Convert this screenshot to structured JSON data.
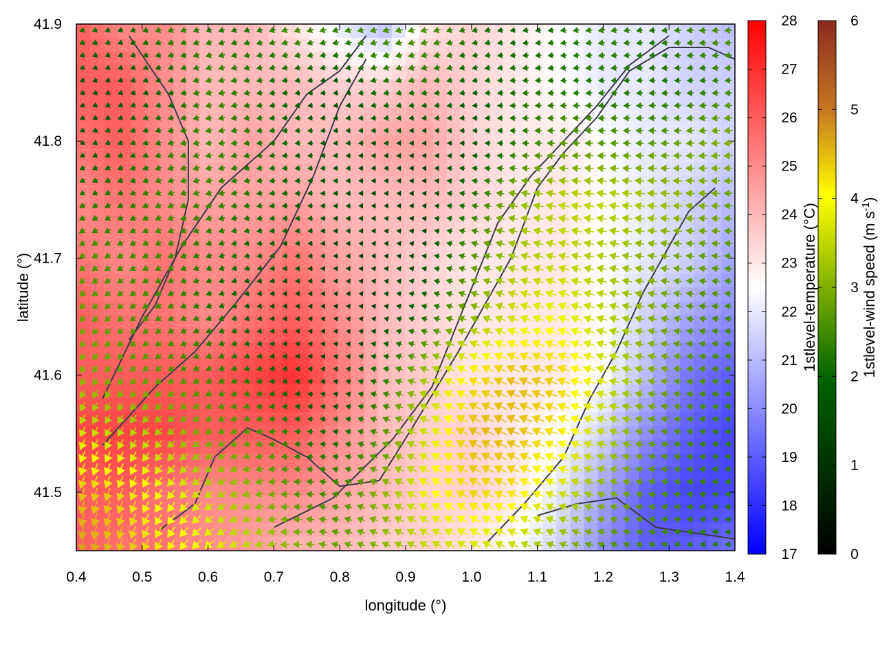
{
  "chart_data": {
    "type": "heatmap",
    "title": "",
    "xlabel": "longitude (°)",
    "ylabel": "latitude (°)",
    "xlim": [
      0.4,
      1.4
    ],
    "ylim": [
      41.45,
      41.9
    ],
    "x_ticks": [
      "0.4",
      "0.5",
      "0.6",
      "0.7",
      "0.8",
      "0.9",
      "1.0",
      "1.1",
      "1.2",
      "1.3",
      "1.4"
    ],
    "y_ticks": [
      "41.5",
      "41.6",
      "41.7",
      "41.8",
      "41.9"
    ],
    "temperature_colorbar": {
      "label": "1stlevel-temperature (°C)",
      "range": [
        17,
        28
      ],
      "ticks": [
        "17",
        "18",
        "19",
        "20",
        "21",
        "22",
        "23",
        "24",
        "25",
        "26",
        "27",
        "28"
      ],
      "colors": [
        "#0000ff",
        "#ffffff",
        "#ff0000"
      ]
    },
    "wind_colorbar": {
      "label_main": "1stlevel-wind speed (m s",
      "label_sup": "-1",
      "label_end": ")",
      "range": [
        0,
        6
      ],
      "ticks": [
        "0",
        "1",
        "2",
        "3",
        "4",
        "5",
        "6"
      ],
      "colors": [
        "#000000",
        "#006400",
        "#7fb000",
        "#ffff00",
        "#c87820",
        "#8b2a20"
      ]
    },
    "temperature_field": [
      [
        26,
        25,
        25,
        24,
        24,
        23,
        22,
        21,
        23,
        23.5,
        23,
        22.5,
        22,
        22,
        21.5,
        21
      ],
      [
        26,
        26,
        25,
        24,
        24,
        24,
        23.5,
        23.5,
        24,
        23.5,
        23,
        22.5,
        22,
        22,
        21.5,
        21.5
      ],
      [
        25.5,
        26,
        25,
        24,
        24.5,
        24,
        24,
        24.5,
        24.5,
        23.5,
        23,
        23,
        22.5,
        22,
        22,
        21.5
      ],
      [
        25,
        25.5,
        25,
        24.5,
        24.5,
        24.5,
        24,
        24,
        24,
        23.5,
        23,
        23,
        22.5,
        22,
        21.5,
        21
      ],
      [
        25.5,
        25,
        25.5,
        25,
        25,
        25.5,
        24.5,
        24,
        23.5,
        23,
        23,
        23,
        22.5,
        22,
        21.5,
        20.5
      ],
      [
        26,
        25.5,
        25.5,
        25,
        25.5,
        26,
        25,
        24,
        23.5,
        23,
        23,
        23,
        22.5,
        21.5,
        20.5,
        20
      ],
      [
        26,
        26,
        26,
        26,
        26.5,
        27,
        25.5,
        24,
        23.5,
        23,
        23,
        23,
        22.5,
        21,
        19.5,
        19
      ],
      [
        26.5,
        26.5,
        26.5,
        26,
        26,
        26,
        25,
        24,
        23.5,
        23.5,
        23,
        22.5,
        21.5,
        20,
        19,
        18.5
      ],
      [
        26,
        26,
        25.5,
        25,
        25,
        25,
        24.5,
        24,
        23.5,
        23.5,
        23,
        22,
        20.5,
        19,
        18.5,
        18.5
      ],
      [
        26,
        25.5,
        25.5,
        25,
        24.5,
        24,
        24,
        23.5,
        23.5,
        23,
        22.5,
        21.5,
        20,
        19,
        19,
        19.5
      ]
    ],
    "wind_speed_field": [
      [
        1.5,
        1.2,
        1.8,
        1.5,
        1.5,
        2.0,
        1.8,
        2.0,
        2.0,
        1.5,
        1.2,
        1.5,
        1.8,
        1.5,
        1.8,
        2.0
      ],
      [
        1.0,
        1.0,
        1.2,
        1.8,
        1.5,
        1.2,
        1.0,
        1.5,
        1.5,
        1.2,
        1.5,
        1.5,
        1.5,
        1.5,
        1.5,
        1.8
      ],
      [
        1.0,
        1.2,
        1.5,
        1.8,
        1.5,
        1.2,
        1.0,
        1.0,
        0.8,
        1.0,
        1.5,
        2.0,
        2.0,
        2.0,
        2.2,
        2.5
      ],
      [
        1.5,
        1.5,
        1.8,
        1.8,
        1.5,
        1.2,
        1.0,
        0.8,
        0.8,
        1.5,
        2.5,
        3.0,
        3.0,
        2.8,
        2.5,
        2.2
      ],
      [
        2.0,
        1.8,
        1.8,
        1.5,
        1.2,
        1.0,
        0.8,
        0.8,
        1.0,
        2.0,
        2.8,
        3.0,
        2.8,
        2.5,
        2.2,
        2.0
      ],
      [
        2.2,
        2.0,
        1.8,
        1.5,
        1.0,
        0.8,
        0.6,
        0.8,
        1.5,
        2.5,
        3.2,
        3.5,
        3.0,
        2.5,
        2.0,
        1.8
      ],
      [
        2.5,
        2.2,
        2.0,
        1.8,
        1.5,
        1.0,
        0.8,
        1.5,
        2.8,
        3.8,
        4.2,
        4.0,
        3.2,
        2.5,
        2.0,
        1.8
      ],
      [
        3.2,
        3.0,
        2.8,
        2.2,
        2.0,
        1.5,
        1.2,
        2.0,
        3.2,
        4.2,
        4.2,
        3.8,
        3.0,
        2.2,
        1.8,
        1.6
      ],
      [
        4.2,
        4.0,
        3.5,
        3.0,
        2.5,
        2.0,
        1.8,
        2.5,
        3.5,
        4.0,
        3.8,
        3.2,
        2.5,
        2.0,
        1.8,
        1.6
      ],
      [
        4.5,
        4.2,
        3.8,
        3.5,
        3.0,
        2.5,
        2.2,
        2.5,
        3.0,
        3.2,
        3.0,
        2.5,
        2.0,
        1.8,
        1.6,
        1.5
      ]
    ],
    "wind_direction_deg": [
      [
        200,
        200,
        200,
        200,
        200,
        200,
        195,
        195,
        195,
        195,
        190,
        190,
        190,
        190,
        185,
        185
      ],
      [
        200,
        200,
        195,
        195,
        190,
        190,
        190,
        195,
        195,
        190,
        185,
        185,
        185,
        185,
        185,
        185
      ],
      [
        205,
        200,
        195,
        190,
        190,
        185,
        185,
        180,
        180,
        180,
        180,
        180,
        180,
        180,
        185,
        185
      ],
      [
        210,
        205,
        200,
        195,
        190,
        185,
        180,
        180,
        175,
        170,
        170,
        170,
        170,
        175,
        175,
        180
      ],
      [
        215,
        210,
        205,
        200,
        190,
        185,
        180,
        175,
        170,
        165,
        165,
        165,
        170,
        170,
        175,
        175
      ],
      [
        225,
        220,
        210,
        200,
        190,
        180,
        175,
        170,
        165,
        160,
        160,
        160,
        165,
        170,
        170,
        175
      ],
      [
        235,
        230,
        215,
        205,
        190,
        180,
        170,
        165,
        160,
        155,
        155,
        160,
        165,
        170,
        175,
        175
      ],
      [
        245,
        240,
        225,
        210,
        195,
        180,
        170,
        160,
        155,
        150,
        155,
        160,
        165,
        170,
        170,
        175
      ],
      [
        255,
        250,
        235,
        215,
        195,
        180,
        165,
        155,
        150,
        150,
        155,
        160,
        165,
        170,
        175,
        175
      ],
      [
        265,
        255,
        240,
        220,
        200,
        180,
        165,
        155,
        150,
        150,
        155,
        160,
        165,
        170,
        175,
        180
      ]
    ],
    "contour_lines": [
      [
        [
          0.52,
          41.465
        ],
        [
          0.58,
          41.49
        ],
        [
          0.61,
          41.53
        ],
        [
          0.66,
          41.555
        ],
        [
          0.7,
          41.545
        ],
        [
          0.75,
          41.53
        ],
        [
          0.8,
          41.505
        ],
        [
          0.86,
          41.51
        ],
        [
          0.91,
          41.555
        ],
        [
          0.98,
          41.62
        ],
        [
          1.06,
          41.7
        ],
        [
          1.1,
          41.76
        ],
        [
          1.14,
          41.79
        ],
        [
          1.19,
          41.82
        ],
        [
          1.24,
          41.86
        ],
        [
          1.3,
          41.88
        ],
        [
          1.36,
          41.88
        ],
        [
          1.4,
          41.87
        ]
      ],
      [
        [
          0.7,
          41.47
        ],
        [
          0.79,
          41.495
        ],
        [
          0.88,
          41.545
        ],
        [
          0.94,
          41.59
        ],
        [
          0.99,
          41.66
        ],
        [
          1.04,
          41.73
        ],
        [
          1.09,
          41.77
        ],
        [
          1.14,
          41.8
        ],
        [
          1.19,
          41.83
        ],
        [
          1.24,
          41.865
        ],
        [
          1.3,
          41.89
        ]
      ],
      [
        [
          0.44,
          41.58
        ],
        [
          0.5,
          41.65
        ],
        [
          0.56,
          41.71
        ],
        [
          0.62,
          41.76
        ],
        [
          0.7,
          41.8
        ],
        [
          0.75,
          41.84
        ],
        [
          0.8,
          41.86
        ],
        [
          0.84,
          41.89
        ]
      ],
      [
        [
          0.44,
          41.54
        ],
        [
          0.52,
          41.59
        ],
        [
          0.58,
          41.62
        ],
        [
          0.64,
          41.66
        ],
        [
          0.71,
          41.71
        ],
        [
          0.76,
          41.77
        ],
        [
          0.8,
          41.83
        ],
        [
          0.84,
          41.87
        ]
      ],
      [
        [
          1.02,
          41.455
        ],
        [
          1.08,
          41.49
        ],
        [
          1.14,
          41.53
        ],
        [
          1.18,
          41.58
        ],
        [
          1.22,
          41.62
        ],
        [
          1.26,
          41.67
        ],
        [
          1.3,
          41.71
        ],
        [
          1.33,
          41.74
        ],
        [
          1.37,
          41.76
        ]
      ],
      [
        [
          1.1,
          41.48
        ],
        [
          1.16,
          41.49
        ],
        [
          1.22,
          41.495
        ],
        [
          1.28,
          41.47
        ],
        [
          1.34,
          41.465
        ],
        [
          1.4,
          41.46
        ]
      ],
      [
        [
          0.48,
          41.89
        ],
        [
          0.54,
          41.84
        ],
        [
          0.57,
          41.8
        ],
        [
          0.57,
          41.75
        ],
        [
          0.55,
          41.7
        ],
        [
          0.52,
          41.66
        ],
        [
          0.48,
          41.63
        ]
      ]
    ]
  }
}
